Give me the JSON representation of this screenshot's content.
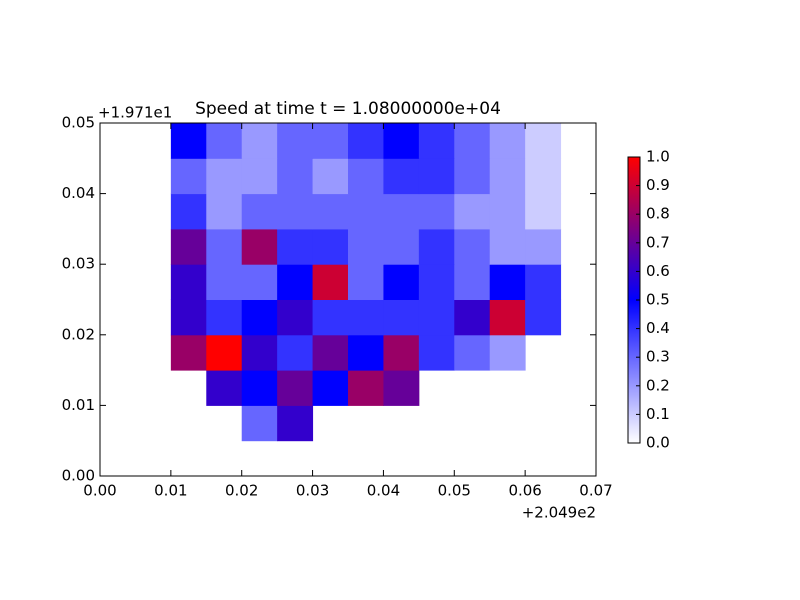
{
  "chart_data": {
    "type": "heatmap",
    "title": "Speed at time t = 1.08000000e+04",
    "x_offset_label": "+2.049e2",
    "y_offset_label": "+1.971e1",
    "x": [
      0.0125,
      0.0175,
      0.0225,
      0.0275,
      0.0325,
      0.0375,
      0.0425,
      0.0475,
      0.0525,
      0.0575,
      0.0625
    ],
    "y": [
      0.0075,
      0.0125,
      0.0175,
      0.0225,
      0.0275,
      0.0325,
      0.0375,
      0.0425,
      0.0475
    ],
    "z": [
      [
        null,
        null,
        0.3,
        0.6,
        null,
        null,
        null,
        null,
        null,
        null,
        null
      ],
      [
        null,
        0.6,
        0.5,
        0.7,
        0.5,
        0.8,
        0.7,
        null,
        null,
        null,
        null
      ],
      [
        0.8,
        1.0,
        0.6,
        0.4,
        0.7,
        0.5,
        0.8,
        0.4,
        0.3,
        0.2,
        null
      ],
      [
        0.6,
        0.4,
        0.5,
        0.6,
        0.4,
        0.4,
        0.4,
        0.4,
        0.6,
        0.9,
        0.4
      ],
      [
        0.6,
        0.3,
        0.3,
        0.5,
        0.9,
        0.3,
        0.5,
        0.4,
        0.3,
        0.5,
        0.4
      ],
      [
        0.7,
        0.3,
        0.8,
        0.4,
        0.4,
        0.3,
        0.3,
        0.4,
        0.3,
        0.2,
        0.2
      ],
      [
        0.4,
        0.2,
        0.3,
        0.3,
        0.3,
        0.3,
        0.3,
        0.3,
        0.2,
        0.2,
        0.1
      ],
      [
        0.3,
        0.2,
        0.2,
        0.3,
        0.2,
        0.3,
        0.4,
        0.4,
        0.3,
        0.2,
        0.1
      ],
      [
        0.5,
        0.3,
        0.2,
        0.3,
        0.3,
        0.4,
        0.5,
        0.4,
        0.3,
        0.2,
        0.1
      ]
    ],
    "colormap": [
      "#ffffff",
      "#0000ff",
      "#ff0000"
    ],
    "xlim": [
      0,
      0.07
    ],
    "ylim": [
      0,
      0.05
    ],
    "xticks": [
      {
        "value": 0,
        "label": "0.00"
      },
      {
        "value": 0.01,
        "label": "0.01"
      },
      {
        "value": 0.02,
        "label": "0.02"
      },
      {
        "value": 0.03,
        "label": "0.03"
      },
      {
        "value": 0.04,
        "label": "0.04"
      },
      {
        "value": 0.05,
        "label": "0.05"
      },
      {
        "value": 0.06,
        "label": "0.06"
      },
      {
        "value": 0.07,
        "label": "0.07"
      }
    ],
    "yticks": [
      {
        "value": 0,
        "label": "0.00"
      },
      {
        "value": 0.01,
        "label": "0.01"
      },
      {
        "value": 0.02,
        "label": "0.02"
      },
      {
        "value": 0.03,
        "label": "0.03"
      },
      {
        "value": 0.04,
        "label": "0.04"
      },
      {
        "value": 0.05,
        "label": "0.05"
      }
    ],
    "clim": [
      0,
      1
    ],
    "cticks": [
      {
        "value": 0,
        "label": "0.0"
      },
      {
        "value": 0.1,
        "label": "0.1"
      },
      {
        "value": 0.2,
        "label": "0.2"
      },
      {
        "value": 0.3,
        "label": "0.3"
      },
      {
        "value": 0.4,
        "label": "0.4"
      },
      {
        "value": 0.5,
        "label": "0.5"
      },
      {
        "value": 0.6,
        "label": "0.6"
      },
      {
        "value": 0.7,
        "label": "0.7"
      },
      {
        "value": 0.8,
        "label": "0.8"
      },
      {
        "value": 0.9,
        "label": "0.9"
      },
      {
        "value": 1,
        "label": "1.0"
      }
    ]
  }
}
